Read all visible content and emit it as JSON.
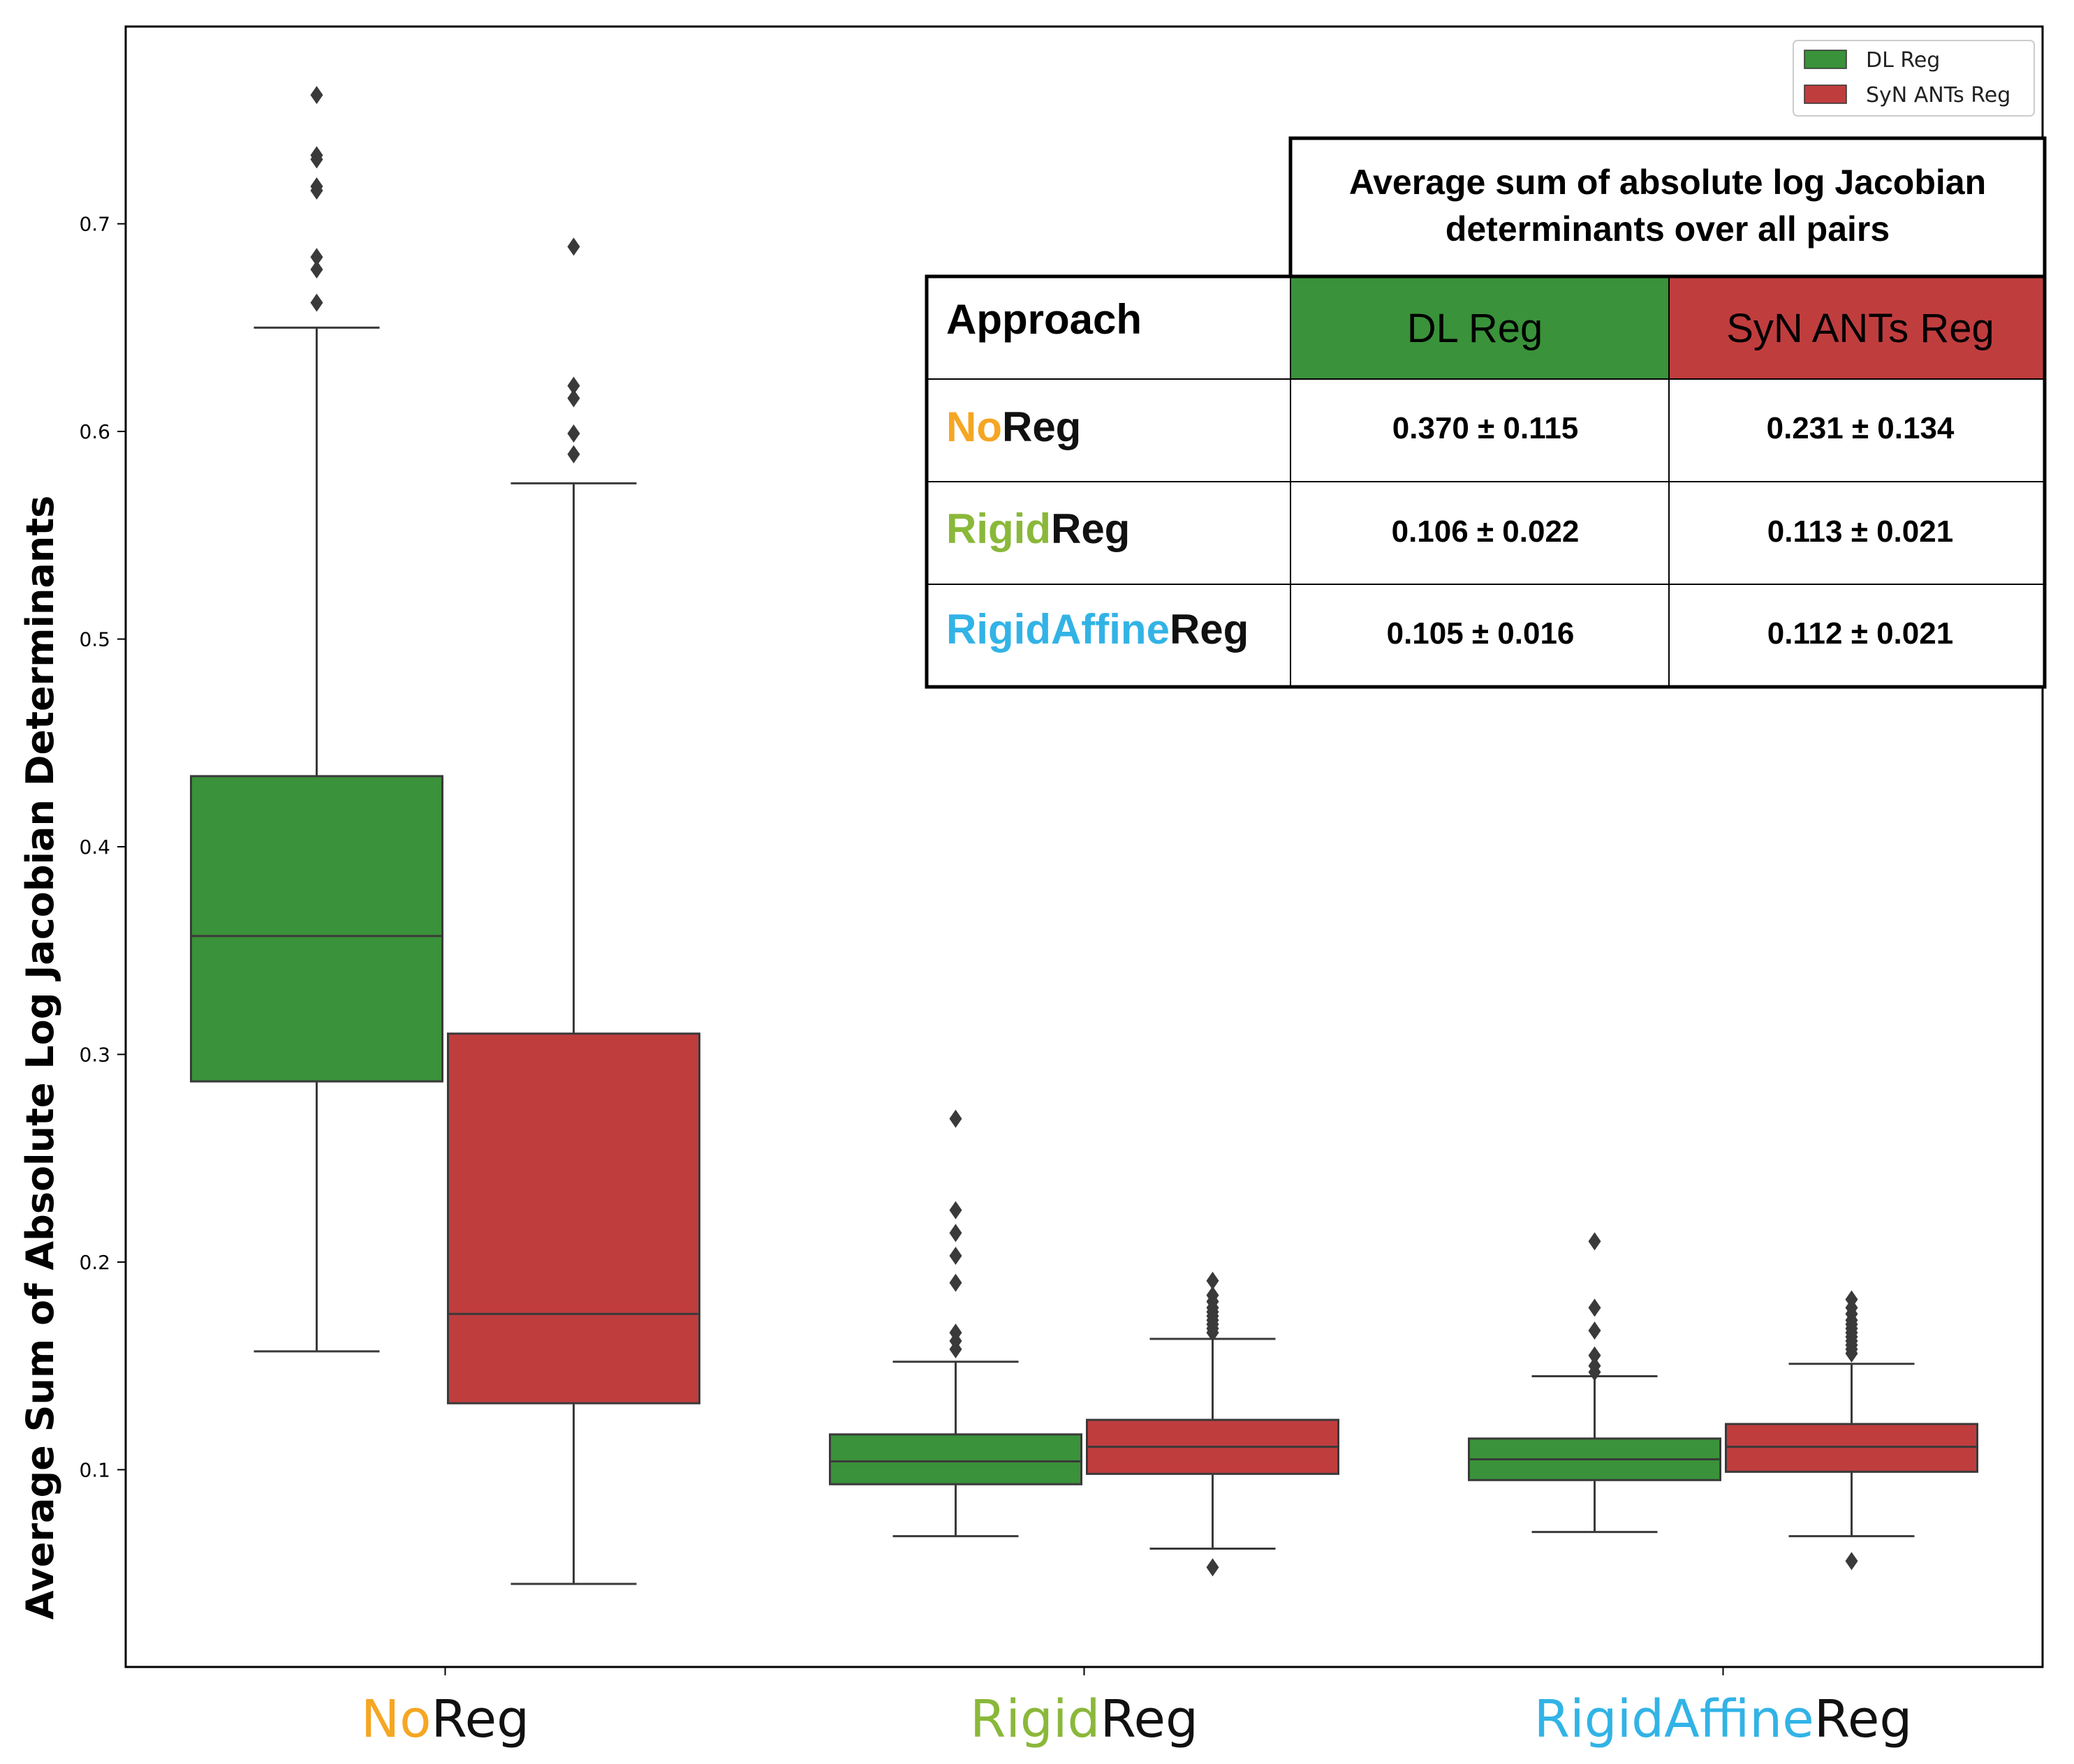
{
  "chart_data": {
    "type": "box",
    "ylabel": "Average Sum of Absolute Log Jacobian Determinants",
    "xlabel": "",
    "ylim": [
      0.005,
      0.795
    ],
    "yticks": [
      "0.1",
      "0.2",
      "0.3",
      "0.4",
      "0.5",
      "0.6",
      "0.7"
    ],
    "categories": [
      {
        "parts": [
          "No",
          "Reg"
        ],
        "colors": [
          "#f5a623",
          "#111111"
        ]
      },
      {
        "parts": [
          "Rigid",
          "Reg"
        ],
        "colors": [
          "#8ab83a",
          "#111111"
        ]
      },
      {
        "parts": [
          "RigidAffine",
          "Reg"
        ],
        "colors": [
          "#32b3e6",
          "#111111"
        ]
      }
    ],
    "series": [
      {
        "name": "DL Reg",
        "color": "#3a923a",
        "boxes": [
          {
            "whislo": 0.157,
            "q1": 0.287,
            "med": 0.357,
            "q3": 0.434,
            "whishi": 0.65,
            "fliers": [
              0.762,
              0.733,
              0.731,
              0.718,
              0.716,
              0.684,
              0.678,
              0.662
            ]
          },
          {
            "whislo": 0.068,
            "q1": 0.093,
            "med": 0.104,
            "q3": 0.117,
            "whishi": 0.152,
            "fliers": [
              0.269,
              0.225,
              0.214,
              0.203,
              0.19,
              0.166,
              0.162,
              0.158
            ]
          },
          {
            "whislo": 0.07,
            "q1": 0.095,
            "med": 0.105,
            "q3": 0.115,
            "whishi": 0.145,
            "fliers": [
              0.21,
              0.178,
              0.167,
              0.155,
              0.15,
              0.147
            ]
          }
        ]
      },
      {
        "name": "SyN ANTs Reg",
        "color": "#c03d3e",
        "boxes": [
          {
            "whislo": 0.045,
            "q1": 0.132,
            "med": 0.175,
            "q3": 0.31,
            "whishi": 0.575,
            "fliers": [
              0.689,
              0.622,
              0.616,
              0.599,
              0.589
            ]
          },
          {
            "whislo": 0.062,
            "q1": 0.098,
            "med": 0.111,
            "q3": 0.124,
            "whishi": 0.163,
            "fliers": [
              0.191,
              0.184,
              0.181,
              0.178,
              0.176,
              0.174,
              0.172,
              0.17,
              0.168,
              0.166,
              0.053
            ]
          },
          {
            "whislo": 0.068,
            "q1": 0.099,
            "med": 0.111,
            "q3": 0.122,
            "whishi": 0.151,
            "fliers": [
              0.182,
              0.178,
              0.175,
              0.172,
              0.17,
              0.168,
              0.166,
              0.164,
              0.162,
              0.16,
              0.158,
              0.156,
              0.056
            ]
          }
        ]
      }
    ],
    "legend": {
      "placement": "top-right",
      "entries": [
        "DL Reg",
        "SyN ANTs Reg"
      ]
    },
    "table": {
      "title_line1": "Average sum of absolute log Jacobian",
      "title_line2": "determinants over all pairs",
      "header": "Approach",
      "col_headers": [
        "DL Reg",
        "SyN ANTs Reg"
      ],
      "col_colors": [
        "#3a923a",
        "#c03d3e"
      ],
      "rows": [
        {
          "label": [
            "No",
            "Reg"
          ],
          "label_colors": [
            "#f5a623",
            "#111111"
          ],
          "values": [
            "0.370 ± 0.115",
            "0.231 ± 0.134"
          ]
        },
        {
          "label": [
            "Rigid",
            "Reg"
          ],
          "label_colors": [
            "#8ab83a",
            "#111111"
          ],
          "values": [
            "0.106 ± 0.022",
            "0.113 ± 0.021"
          ]
        },
        {
          "label": [
            "RigidAffine",
            "Reg"
          ],
          "label_colors": [
            "#32b3e6",
            "#111111"
          ],
          "values": [
            "0.105 ± 0.016",
            "0.112 ± 0.021"
          ]
        }
      ]
    }
  }
}
